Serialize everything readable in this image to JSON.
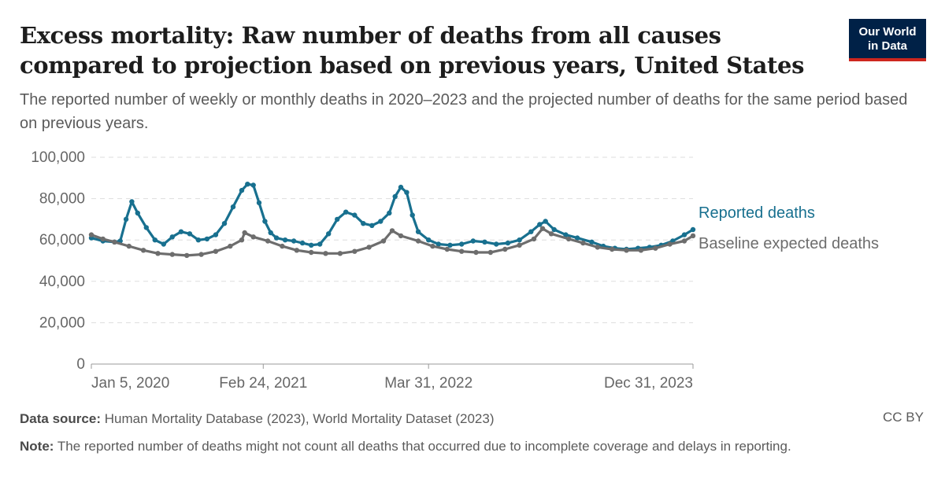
{
  "header": {
    "title": "Excess mortality: Raw number of deaths from all causes compared to projection based on previous years, United States",
    "subtitle": "The reported number of weekly or monthly deaths in 2020–2023 and the projected number of deaths for the same period based on previous years.",
    "logo_line1": "Our World",
    "logo_line2": "in Data"
  },
  "footer": {
    "source_label": "Data source:",
    "source_text": "Human Mortality Database (2023), World Mortality Dataset (2023)",
    "note_label": "Note:",
    "note_text": "The reported number of deaths might not count all deaths that occurred due to incomplete coverage and delays in reporting.",
    "license": "CC BY"
  },
  "chart_data": {
    "type": "line",
    "x_axis": {
      "type": "date",
      "range": [
        "2020-01-05",
        "2023-12-31"
      ],
      "ticks": [
        {
          "date": "2020-01-05",
          "label": "Jan 5, 2020"
        },
        {
          "date": "2021-02-24",
          "label": "Feb 24, 2021"
        },
        {
          "date": "2022-03-31",
          "label": "Mar 31, 2022"
        },
        {
          "date": "2023-12-31",
          "label": "Dec 31, 2023"
        }
      ]
    },
    "y_axis": {
      "range": [
        0,
        100000
      ],
      "ticks": [
        {
          "value": 0,
          "label": "0"
        },
        {
          "value": 20000,
          "label": "20,000"
        },
        {
          "value": 40000,
          "label": "40,000"
        },
        {
          "value": 60000,
          "label": "60,000"
        },
        {
          "value": 80000,
          "label": "80,000"
        },
        {
          "value": 100000,
          "label": "100,000"
        }
      ],
      "grid": true
    },
    "legend": "right-of-lines",
    "series": [
      {
        "name": "Reported deaths",
        "color": "#18708f",
        "points": [
          [
            "2020-01-05",
            61000
          ],
          [
            "2020-02-02",
            59500
          ],
          [
            "2020-03-01",
            59000
          ],
          [
            "2020-03-15",
            59500
          ],
          [
            "2020-03-29",
            70000
          ],
          [
            "2020-04-12",
            78500
          ],
          [
            "2020-04-26",
            73000
          ],
          [
            "2020-05-17",
            66000
          ],
          [
            "2020-06-07",
            60000
          ],
          [
            "2020-06-28",
            58000
          ],
          [
            "2020-07-19",
            61500
          ],
          [
            "2020-08-09",
            64000
          ],
          [
            "2020-08-30",
            63000
          ],
          [
            "2020-09-20",
            60000
          ],
          [
            "2020-10-11",
            60500
          ],
          [
            "2020-11-01",
            62500
          ],
          [
            "2020-11-22",
            68000
          ],
          [
            "2020-12-13",
            76000
          ],
          [
            "2021-01-03",
            84000
          ],
          [
            "2021-01-17",
            87000
          ],
          [
            "2021-01-31",
            86500
          ],
          [
            "2021-02-14",
            78000
          ],
          [
            "2021-02-28",
            69000
          ],
          [
            "2021-03-14",
            63500
          ],
          [
            "2021-03-28",
            61000
          ],
          [
            "2021-04-18",
            60000
          ],
          [
            "2021-05-09",
            59500
          ],
          [
            "2021-05-30",
            58500
          ],
          [
            "2021-06-20",
            57500
          ],
          [
            "2021-07-11",
            58000
          ],
          [
            "2021-08-01",
            63000
          ],
          [
            "2021-08-22",
            70000
          ],
          [
            "2021-09-12",
            73500
          ],
          [
            "2021-10-03",
            72000
          ],
          [
            "2021-10-24",
            68000
          ],
          [
            "2021-11-14",
            67000
          ],
          [
            "2021-12-05",
            69000
          ],
          [
            "2021-12-26",
            73000
          ],
          [
            "2022-01-09",
            81000
          ],
          [
            "2022-01-23",
            85500
          ],
          [
            "2022-02-06",
            83000
          ],
          [
            "2022-02-20",
            72000
          ],
          [
            "2022-03-06",
            64000
          ],
          [
            "2022-03-31",
            60000
          ],
          [
            "2022-04-24",
            58000
          ],
          [
            "2022-05-22",
            57500
          ],
          [
            "2022-06-19",
            58000
          ],
          [
            "2022-07-17",
            59500
          ],
          [
            "2022-08-14",
            59000
          ],
          [
            "2022-09-11",
            58000
          ],
          [
            "2022-10-09",
            58500
          ],
          [
            "2022-11-06",
            60000
          ],
          [
            "2022-12-04",
            64000
          ],
          [
            "2022-12-25",
            67500
          ],
          [
            "2023-01-08",
            69000
          ],
          [
            "2023-01-29",
            65000
          ],
          [
            "2023-02-26",
            62500
          ],
          [
            "2023-03-26",
            61000
          ],
          [
            "2023-04-30",
            59000
          ],
          [
            "2023-05-28",
            57000
          ],
          [
            "2023-06-25",
            56000
          ],
          [
            "2023-07-23",
            55500
          ],
          [
            "2023-08-20",
            56000
          ],
          [
            "2023-09-17",
            56500
          ],
          [
            "2023-10-15",
            57500
          ],
          [
            "2023-11-12",
            59500
          ],
          [
            "2023-12-10",
            62500
          ],
          [
            "2023-12-31",
            65000
          ]
        ]
      },
      {
        "name": "Baseline expected deaths",
        "color": "#6d6d6d",
        "points": [
          [
            "2020-01-05",
            62500
          ],
          [
            "2020-02-02",
            60500
          ],
          [
            "2020-03-01",
            59000
          ],
          [
            "2020-04-05",
            57000
          ],
          [
            "2020-05-10",
            55000
          ],
          [
            "2020-06-14",
            53500
          ],
          [
            "2020-07-19",
            53000
          ],
          [
            "2020-08-23",
            52500
          ],
          [
            "2020-09-27",
            53000
          ],
          [
            "2020-11-01",
            54500
          ],
          [
            "2020-12-06",
            57000
          ],
          [
            "2021-01-03",
            60000
          ],
          [
            "2021-01-10",
            63500
          ],
          [
            "2021-01-31",
            61500
          ],
          [
            "2021-03-07",
            59500
          ],
          [
            "2021-04-11",
            57000
          ],
          [
            "2021-05-16",
            55000
          ],
          [
            "2021-06-20",
            54000
          ],
          [
            "2021-07-25",
            53500
          ],
          [
            "2021-08-29",
            53500
          ],
          [
            "2021-10-03",
            54500
          ],
          [
            "2021-11-07",
            56500
          ],
          [
            "2021-12-12",
            59500
          ],
          [
            "2022-01-02",
            64500
          ],
          [
            "2022-01-23",
            62000
          ],
          [
            "2022-03-06",
            59500
          ],
          [
            "2022-04-10",
            57000
          ],
          [
            "2022-05-15",
            55500
          ],
          [
            "2022-06-19",
            54500
          ],
          [
            "2022-07-24",
            54000
          ],
          [
            "2022-08-28",
            54000
          ],
          [
            "2022-10-02",
            55500
          ],
          [
            "2022-11-06",
            57500
          ],
          [
            "2022-12-11",
            60500
          ],
          [
            "2023-01-01",
            65500
          ],
          [
            "2023-01-22",
            63000
          ],
          [
            "2023-03-05",
            60500
          ],
          [
            "2023-04-09",
            58500
          ],
          [
            "2023-05-14",
            56500
          ],
          [
            "2023-06-18",
            55500
          ],
          [
            "2023-07-23",
            55000
          ],
          [
            "2023-08-27",
            55000
          ],
          [
            "2023-10-01",
            56000
          ],
          [
            "2023-11-05",
            58000
          ],
          [
            "2023-12-10",
            59500
          ],
          [
            "2023-12-31",
            62000
          ]
        ]
      }
    ]
  }
}
